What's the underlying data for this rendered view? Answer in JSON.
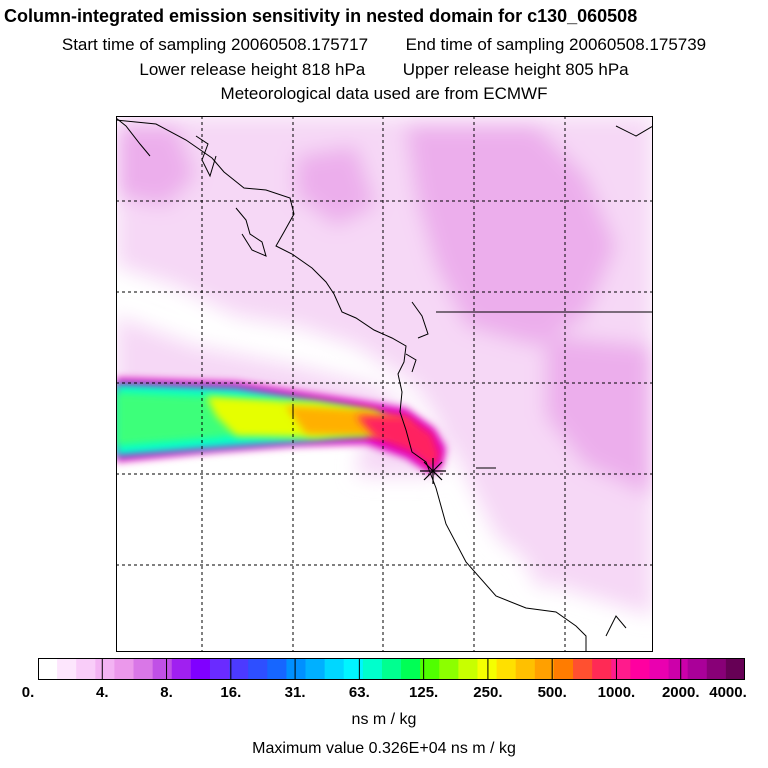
{
  "title": "Column-integrated emission sensitivity in nested domain for c130_060508",
  "sampling": {
    "start_label": "Start time of sampling",
    "start_value": "20060508.175717",
    "end_label": "End time of sampling",
    "end_value": "20060508.175739"
  },
  "release": {
    "lower_label": "Lower release height",
    "lower_value": "818 hPa",
    "upper_label": "Upper release height",
    "upper_value": "805 hPa"
  },
  "met": "Meteorological data used are from ECMWF",
  "colorbar": {
    "colors": [
      "#ffffff",
      "#fde6fd",
      "#f9cdf9",
      "#f3b3f3",
      "#eb98eb",
      "#d977e7",
      "#c050e6",
      "#a020f0",
      "#8000ff",
      "#6a2bff",
      "#4c3aff",
      "#2e4fff",
      "#1666ff",
      "#0090ff",
      "#00b0ff",
      "#00d7ff",
      "#00f5ff",
      "#00ffcc",
      "#00ff90",
      "#00ff55",
      "#50ff00",
      "#8cff00",
      "#c8ff00",
      "#f5ff00",
      "#ffe000",
      "#ffc000",
      "#ffa000",
      "#ff7c00",
      "#ff5030",
      "#ff2a55",
      "#ff1b8c",
      "#ff00a0",
      "#ea00b0",
      "#cc00aa",
      "#aa0099",
      "#880077",
      "#660055"
    ],
    "tick_labels": [
      "0.",
      "4.",
      "8.",
      "16.",
      "31.",
      "63.",
      "125.",
      "250.",
      "500.",
      "1000.",
      "2000.",
      "4000."
    ],
    "unit": "ns m / kg"
  },
  "max_value_text": "Maximum value  0.326E+04 ns m / kg",
  "plume_colors": {
    "light": "#f6d8f6",
    "mid": "#ecaeec",
    "green": "#3cff7a",
    "cyan": "#00ffd0",
    "yellow": "#e6ff00",
    "orange": "#ffb000",
    "red": "#ff2060",
    "magenta": "#e000c0",
    "coast": "#000000"
  }
}
